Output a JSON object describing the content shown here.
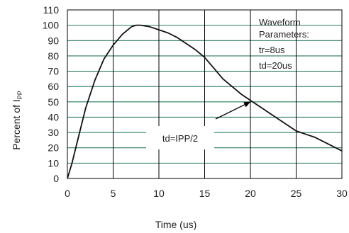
{
  "chart_data": {
    "type": "line",
    "title": "",
    "xlabel": "Time (us)",
    "ylabel_main": "Percent of I",
    "ylabel_sub": "PP",
    "xlim": [
      0,
      30
    ],
    "ylim": [
      0,
      110
    ],
    "x_ticks": [
      0,
      5,
      10,
      15,
      20,
      25,
      30
    ],
    "y_ticks": [
      0,
      10,
      20,
      30,
      40,
      50,
      60,
      70,
      80,
      90,
      100,
      110
    ],
    "grid": true,
    "colors": {
      "line": "#111111",
      "grid": "#2e7a57",
      "frame": "#000000"
    },
    "series": [
      {
        "x": [
          0,
          0.5,
          1,
          2,
          3,
          4,
          5,
          6,
          7,
          7.5,
          8,
          9,
          10,
          11,
          12,
          13,
          14,
          15,
          16,
          17,
          18,
          19,
          20,
          21,
          22,
          23,
          24,
          25,
          26,
          27,
          28,
          29,
          30
        ],
        "y": [
          0,
          10,
          22,
          46,
          64,
          78,
          87,
          94,
          99,
          100,
          100,
          99,
          97,
          95,
          92,
          88,
          84,
          79,
          72,
          65,
          60,
          55,
          51,
          47,
          43,
          39,
          35,
          31,
          29,
          27,
          24,
          21,
          18
        ]
      }
    ],
    "annotations": {
      "params_title_1": "Waveform",
      "params_title_2": "Parameters:",
      "tr": "tr=8us",
      "td": "td=20us",
      "half_label": "td=IPP/2",
      "arrow_target": {
        "x": 20,
        "y": 50
      }
    }
  }
}
